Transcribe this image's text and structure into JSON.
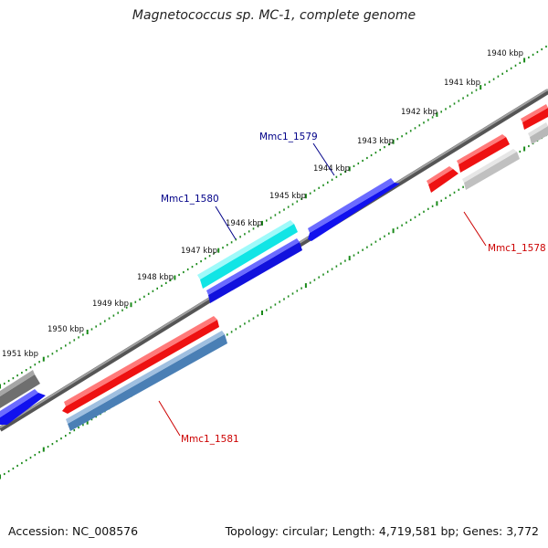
{
  "title": "Magnetococcus sp. MC-1, complete genome",
  "footer": {
    "accession": "Accession: NC_008576",
    "topology": "Topology: circular; Length: 4,719,581 bp; Genes: 3,772"
  },
  "colors": {
    "backbone": "#8c8c8c",
    "ticks": "#1a8a1a",
    "forward_gene_red": "#ff1111",
    "blue_gene": "#1111ee",
    "cyan_gene": "#22f0f0",
    "steel_gene": "#5588bb",
    "gray_gene": "#c8c8c8",
    "dark_gray_gene": "#707070",
    "blue_label": "#000088",
    "red_label": "#cc0000"
  },
  "kbp_labels": [
    "1940 kbp",
    "1941 kbp",
    "1942 kbp",
    "1943 kbp",
    "1944 kbp",
    "1945 kbp",
    "1946 kbp",
    "1947 kbp",
    "1948 kbp",
    "1949 kbp",
    "1950 kbp",
    "1951 kbp"
  ],
  "gene_labels": {
    "mmc1_1579": "Mmc1_1579",
    "mmc1_1580": "Mmc1_1580",
    "mmc1_1578": "Mmc1_1578",
    "mmc1_1581": "Mmc1_1581"
  }
}
